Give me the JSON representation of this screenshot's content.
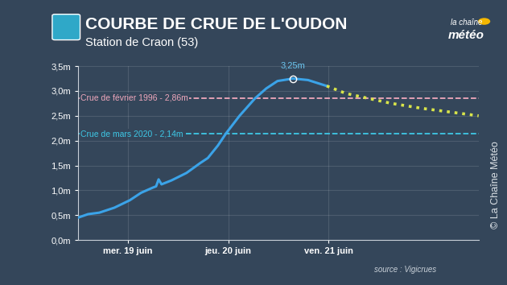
{
  "chart_data": {
    "type": "line",
    "title": "COURBE DE CRUE DE L'OUDON",
    "subtitle": "Station de Craon (53)",
    "logo": [
      "la chaîne",
      "météo"
    ],
    "source": "source : Vigicrues",
    "credit": "© La Chaîne Météo",
    "xlim": [
      0,
      96
    ],
    "xticks": [
      {
        "value": 12,
        "label": "mer. 19 juin"
      },
      {
        "value": 36,
        "label": "jeu. 20 juin"
      },
      {
        "value": 60,
        "label": "ven. 21 juin"
      }
    ],
    "ylim": [
      0,
      3.5
    ],
    "yticks": [
      {
        "value": 0,
        "label": "0,0m"
      },
      {
        "value": 0.5,
        "label": "0,5m"
      },
      {
        "value": 1.0,
        "label": "1,0m"
      },
      {
        "value": 1.5,
        "label": "1,5m"
      },
      {
        "value": 2.0,
        "label": "2,0m"
      },
      {
        "value": 2.5,
        "label": "2,5m"
      },
      {
        "value": 3.0,
        "label": "3,0m"
      },
      {
        "value": 3.5,
        "label": "3,5m"
      }
    ],
    "grid": true,
    "series": [
      {
        "color": "#3ba3e8",
        "line_style": "solid",
        "x": [
          0,
          2.4,
          5.1,
          8.7,
          12.4,
          15.1,
          17.8,
          18.7,
          19.3,
          20.0,
          22.4,
          26.0,
          29.3,
          31.1,
          33.5,
          35.5,
          38.7,
          42.4,
          45.1,
          47.8,
          51.5,
          55.1,
          59.6
        ],
        "values": [
          0.45,
          0.52,
          0.55,
          0.65,
          0.8,
          0.95,
          1.05,
          1.08,
          1.22,
          1.12,
          1.2,
          1.35,
          1.55,
          1.65,
          1.9,
          2.15,
          2.5,
          2.85,
          3.05,
          3.2,
          3.25,
          3.22,
          3.1
        ]
      },
      {
        "color": "#d9e54a",
        "line_style": "dotted",
        "x": [
          59.6,
          64.2,
          69.6,
          75.1,
          82.4,
          91.5,
          96
        ],
        "values": [
          3.1,
          2.95,
          2.85,
          2.75,
          2.65,
          2.55,
          2.5
        ]
      }
    ],
    "reference_lines": [
      {
        "value": 2.86,
        "label": "Crue de février 1996 - 2,86m",
        "color": "#f0a8bc"
      },
      {
        "value": 2.14,
        "label": "Crue de mars 2020 - 2,14m",
        "color": "#3ec8e6"
      }
    ],
    "annotations": [
      {
        "x": 51.5,
        "y": 3.25,
        "label": "3,25m"
      }
    ]
  }
}
